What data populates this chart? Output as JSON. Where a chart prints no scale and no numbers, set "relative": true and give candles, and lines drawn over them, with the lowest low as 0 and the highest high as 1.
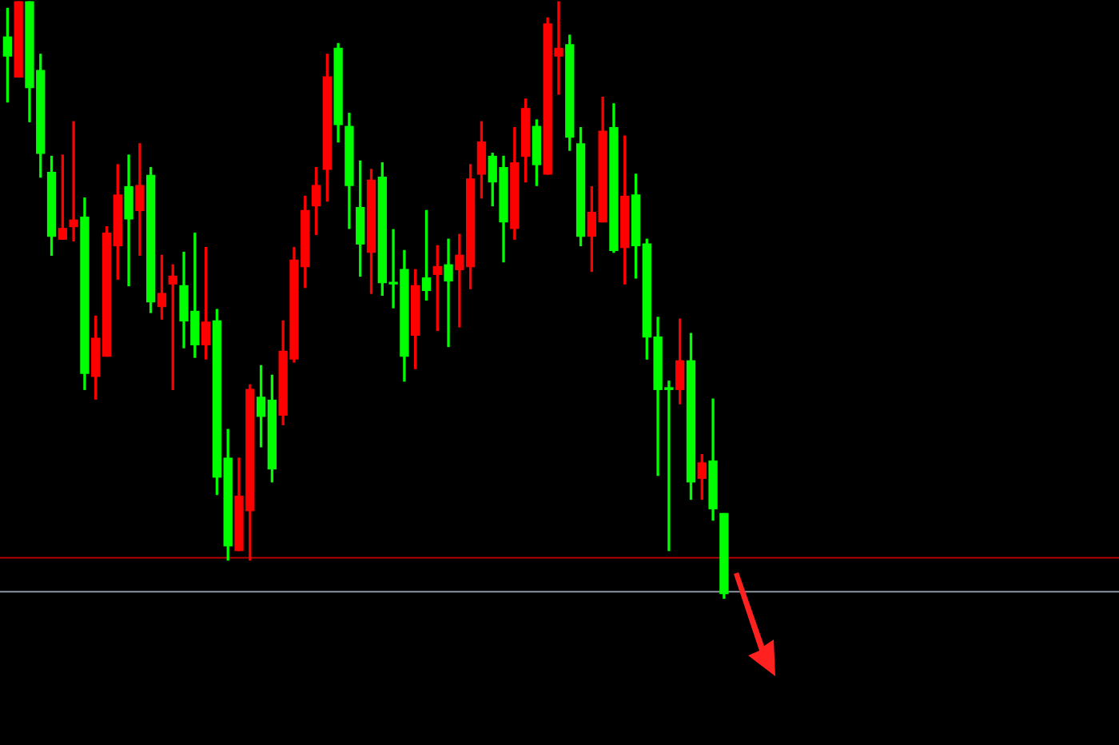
{
  "chart_data": {
    "type": "candlestick",
    "relative": true,
    "categories": [
      null,
      null,
      null,
      null,
      null,
      null,
      null,
      null,
      null,
      null,
      null,
      null,
      null,
      null,
      null,
      null,
      null,
      null,
      null,
      null,
      null,
      null,
      null,
      null,
      null,
      null,
      null,
      null,
      null,
      null,
      null,
      null,
      null,
      null,
      null,
      null,
      null,
      null,
      null,
      null,
      null,
      null,
      null,
      null,
      null,
      null,
      null,
      null,
      null,
      null,
      null,
      null,
      null,
      null,
      null,
      null,
      null,
      null,
      null,
      null,
      null,
      null,
      null,
      null,
      null,
      null
    ],
    "ohlc": [
      [
        0.941,
        0.989,
        0.832,
        0.909
      ],
      [
        0.874,
        1,
        0.874,
        1
      ],
      [
        1,
        1,
        0.799,
        0.856
      ],
      [
        0.885,
        0.912,
        0.706,
        0.746
      ],
      [
        0.714,
        0.741,
        0.575,
        0.607
      ],
      [
        0.602,
        0.743,
        0.602,
        0.62
      ],
      [
        0.623,
        0.799,
        0.599,
        0.634
      ],
      [
        0.639,
        0.671,
        0.35,
        0.377
      ],
      [
        0.372,
        0.473,
        0.334,
        0.436
      ],
      [
        0.406,
        0.623,
        0.406,
        0.612
      ],
      [
        0.591,
        0.727,
        0.535,
        0.676
      ],
      [
        0.69,
        0.743,
        0.524,
        0.636
      ],
      [
        0.65,
        0.762,
        0.575,
        0.692
      ],
      [
        0.709,
        0.722,
        0.479,
        0.497
      ],
      [
        0.489,
        0.575,
        0.468,
        0.511
      ],
      [
        0.527,
        0.559,
        0.35,
        0.54
      ],
      [
        0.524,
        0.58,
        0.42,
        0.465
      ],
      [
        0.481,
        0.612,
        0.404,
        0.425
      ],
      [
        0.425,
        0.588,
        0.401,
        0.463
      ],
      [
        0.465,
        0.484,
        0.174,
        0.203
      ],
      [
        0.235,
        0.283,
        0.064,
        0.088
      ],
      [
        0.08,
        0.235,
        0.08,
        0.171
      ],
      [
        0.147,
        0.358,
        0.064,
        0.35
      ],
      [
        0.337,
        0.39,
        0.254,
        0.305
      ],
      [
        0.332,
        0.374,
        0.195,
        0.217
      ],
      [
        0.307,
        0.465,
        0.291,
        0.414
      ],
      [
        0.401,
        0.588,
        0.396,
        0.567
      ],
      [
        0.556,
        0.674,
        0.521,
        0.65
      ],
      [
        0.658,
        0.722,
        0.61,
        0.692
      ],
      [
        0.719,
        0.912,
        0.666,
        0.874
      ],
      [
        0.922,
        0.93,
        0.765,
        0.794
      ],
      [
        0.791,
        0.813,
        0.62,
        0.692
      ],
      [
        0.655,
        0.733,
        0.54,
        0.594
      ],
      [
        0.58,
        0.719,
        0.511,
        0.701
      ],
      [
        0.706,
        0.73,
        0.508,
        0.529
      ],
      [
        0.529,
        0.618,
        0.487,
        0.527
      ],
      [
        0.551,
        0.583,
        0.364,
        0.406
      ],
      [
        0.441,
        0.551,
        0.385,
        0.524
      ],
      [
        0.537,
        0.65,
        0.5,
        0.516
      ],
      [
        0.543,
        0.591,
        0.449,
        0.556
      ],
      [
        0.559,
        0.602,
        0.422,
        0.532
      ],
      [
        0.551,
        0.61,
        0.455,
        0.575
      ],
      [
        0.556,
        0.727,
        0.519,
        0.703
      ],
      [
        0.711,
        0.799,
        0.671,
        0.765
      ],
      [
        0.741,
        0.746,
        0.658,
        0.698
      ],
      [
        0.722,
        0.741,
        0.564,
        0.631
      ],
      [
        0.62,
        0.789,
        0.602,
        0.73
      ],
      [
        0.741,
        0.837,
        0.698,
        0.821
      ],
      [
        0.791,
        0.802,
        0.692,
        0.727
      ],
      [
        0.711,
        0.973,
        0.711,
        0.963
      ],
      [
        0.909,
        1,
        0.845,
        0.922
      ],
      [
        0.928,
        0.944,
        0.751,
        0.773
      ],
      [
        0.762,
        0.789,
        0.591,
        0.607
      ],
      [
        0.607,
        0.69,
        0.548,
        0.647
      ],
      [
        0.631,
        0.84,
        0.631,
        0.783
      ],
      [
        0.789,
        0.829,
        0.58,
        0.583
      ],
      [
        0.588,
        0.775,
        0.527,
        0.674
      ],
      [
        0.676,
        0.711,
        0.537,
        0.591
      ],
      [
        0.594,
        0.602,
        0.401,
        0.438
      ],
      [
        0.438,
        0.471,
        0.206,
        0.35
      ],
      [
        0.353,
        0.364,
        0.08,
        0.35
      ],
      [
        0.35,
        0.468,
        0.326,
        0.398
      ],
      [
        0.398,
        0.444,
        0.166,
        0.195
      ],
      [
        0.201,
        0.241,
        0.166,
        0.227
      ],
      [
        0.23,
        0.334,
        0.131,
        0.15
      ],
      [
        0.142,
        0.142,
        0,
        0.008
      ]
    ],
    "colors": [
      "#00ff00",
      "#ff0000",
      "#00ff00",
      "#00ff00",
      "#00ff00",
      "#ff0000",
      "#ff0000",
      "#00ff00",
      "#ff0000",
      "#ff0000",
      "#ff0000",
      "#00ff00",
      "#ff0000",
      "#00ff00",
      "#ff0000",
      "#ff0000",
      "#00ff00",
      "#00ff00",
      "#ff0000",
      "#00ff00",
      "#00ff00",
      "#ff0000",
      "#ff0000",
      "#00ff00",
      "#00ff00",
      "#ff0000",
      "#ff0000",
      "#ff0000",
      "#ff0000",
      "#ff0000",
      "#00ff00",
      "#00ff00",
      "#00ff00",
      "#ff0000",
      "#00ff00",
      "#00ff00",
      "#00ff00",
      "#ff0000",
      "#00ff00",
      "#ff0000",
      "#00ff00",
      "#ff0000",
      "#ff0000",
      "#ff0000",
      "#00ff00",
      "#00ff00",
      "#ff0000",
      "#ff0000",
      "#00ff00",
      "#ff0000",
      "#ff0000",
      "#00ff00",
      "#00ff00",
      "#ff0000",
      "#ff0000",
      "#00ff00",
      "#ff0000",
      "#00ff00",
      "#00ff00",
      "#00ff00",
      "#00ff00",
      "#ff0000",
      "#00ff00",
      "#ff0000",
      "#00ff00",
      "#00ff00"
    ],
    "ref_lines": [
      {
        "axis": "y",
        "value": 0.068,
        "color": "#b00000"
      },
      {
        "axis": "y",
        "value": 0.011,
        "color": "#8c96a0"
      }
    ],
    "legend": false
  }
}
